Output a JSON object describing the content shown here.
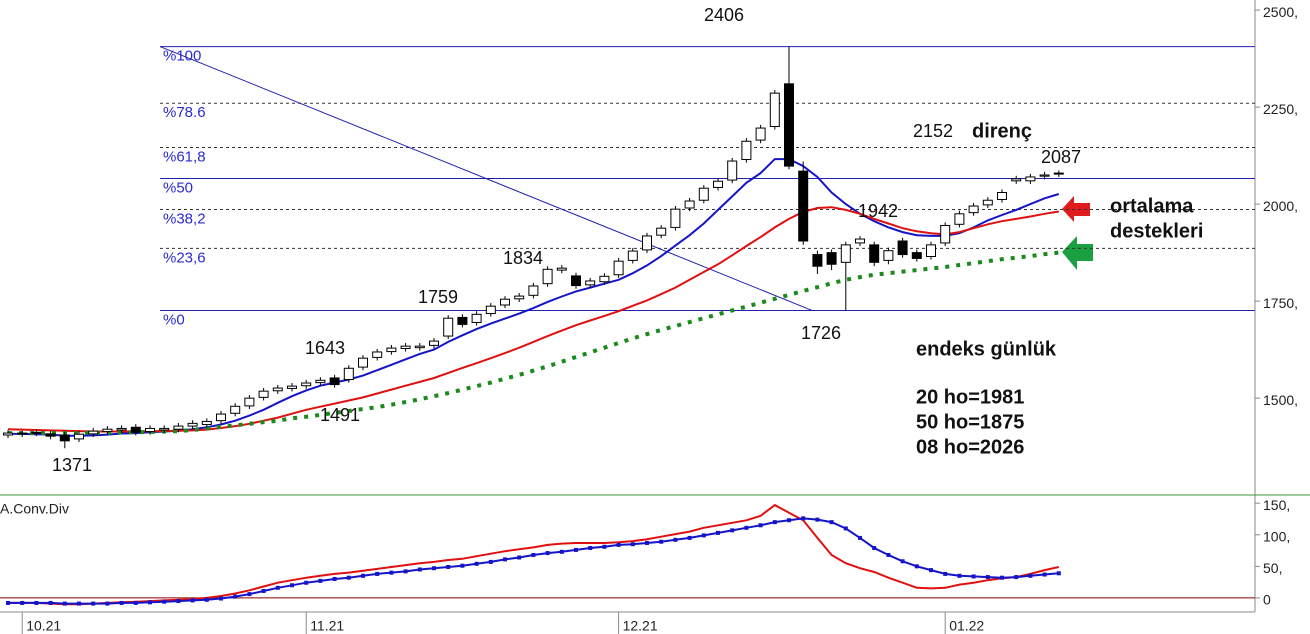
{
  "chart_data": [
    {
      "type": "candlestick",
      "open": [
        1405,
        1408,
        1412,
        1408,
        1405,
        1395,
        1408,
        1414,
        1418,
        1425,
        1414,
        1418,
        1420,
        1428,
        1432,
        1442,
        1461,
        1480,
        1502,
        1519,
        1525,
        1532,
        1540,
        1552,
        1548,
        1580,
        1605,
        1620,
        1628,
        1630,
        1636,
        1660,
        1708,
        1695,
        1718,
        1740,
        1756,
        1765,
        1795,
        1830,
        1815,
        1792,
        1800,
        1818,
        1855,
        1882,
        1920,
        1940,
        1990,
        2010,
        2043,
        2062,
        2115,
        2165,
        2200,
        2310,
        2085,
        1870,
        1875,
        1850,
        1900,
        1895,
        1855,
        1905,
        1875,
        1865,
        1900,
        1948,
        1978,
        1998,
        2012,
        2060,
        2060,
        2072,
        2078
      ],
      "high": [
        1418,
        1416,
        1420,
        1416,
        1413,
        1415,
        1423,
        1428,
        1430,
        1433,
        1430,
        1430,
        1436,
        1443,
        1448,
        1467,
        1487,
        1508,
        1526,
        1534,
        1539,
        1547,
        1554,
        1560,
        1585,
        1611,
        1627,
        1637,
        1642,
        1642,
        1655,
        1714,
        1716,
        1724,
        1745,
        1763,
        1771,
        1797,
        1840,
        1843,
        1823,
        1810,
        1822,
        1861,
        1887,
        1926,
        1946,
        1995,
        2016,
        2049,
        2067,
        2119,
        2170,
        2204,
        2294,
        2406,
        2110,
        1880,
        1883,
        1903,
        1918,
        1903,
        1888,
        1913,
        1883,
        1903,
        1953,
        1983,
        2003,
        2018,
        2038,
        2073,
        2078,
        2083,
        2087
      ],
      "low": [
        1397,
        1400,
        1402,
        1394,
        1371,
        1387,
        1400,
        1406,
        1410,
        1404,
        1406,
        1410,
        1412,
        1420,
        1424,
        1434,
        1453,
        1472,
        1494,
        1511,
        1517,
        1524,
        1532,
        1527,
        1540,
        1572,
        1597,
        1612,
        1620,
        1622,
        1628,
        1652,
        1682,
        1687,
        1710,
        1732,
        1748,
        1757,
        1787,
        1822,
        1782,
        1784,
        1792,
        1810,
        1847,
        1874,
        1912,
        1932,
        1982,
        2002,
        2035,
        2054,
        2107,
        2157,
        2192,
        2090,
        1895,
        1820,
        1830,
        1726,
        1892,
        1840,
        1845,
        1862,
        1852,
        1857,
        1892,
        1940,
        1970,
        1990,
        2004,
        2052,
        2052,
        2064,
        2070
      ],
      "close": [
        1410,
        1410,
        1410,
        1402,
        1390,
        1407,
        1415,
        1420,
        1422,
        1412,
        1422,
        1422,
        1428,
        1435,
        1440,
        1459,
        1479,
        1500,
        1518,
        1526,
        1531,
        1539,
        1546,
        1535,
        1577,
        1603,
        1619,
        1629,
        1634,
        1634,
        1647,
        1706,
        1690,
        1716,
        1737,
        1755,
        1763,
        1789,
        1832,
        1835,
        1790,
        1802,
        1814,
        1853,
        1879,
        1918,
        1938,
        1987,
        2008,
        2041,
        2059,
        2111,
        2162,
        2196,
        2286,
        2098,
        1905,
        1840,
        1845,
        1895,
        1910,
        1850,
        1880,
        1870,
        1860,
        1895,
        1945,
        1975,
        1995,
        2010,
        2030,
        2065,
        2070,
        2075,
        2080
      ],
      "up_color": "#ffffff",
      "down_color": "#000000",
      "series": [
        {
          "color": "#1414c8",
          "style": "solid",
          "values": [
            1408,
            1408,
            1407,
            1406,
            1403,
            1403,
            1404,
            1406,
            1409,
            1410,
            1412,
            1414,
            1416,
            1420,
            1425,
            1432,
            1442,
            1455,
            1470,
            1488,
            1505,
            1520,
            1532,
            1540,
            1548,
            1558,
            1572,
            1586,
            1600,
            1614,
            1625,
            1645,
            1662,
            1678,
            1692,
            1705,
            1718,
            1732,
            1748,
            1762,
            1775,
            1785,
            1795,
            1805,
            1822,
            1842,
            1866,
            1893,
            1920,
            1950,
            1985,
            2020,
            2055,
            2080,
            2116,
            2116,
            2098,
            2070,
            2030,
            2000,
            1975,
            1956,
            1940,
            1928,
            1920,
            1918,
            1918,
            1925,
            1940,
            1958,
            1972,
            1985,
            2000,
            2015,
            2026
          ]
        },
        {
          "color": "#e01010",
          "style": "solid",
          "values": [
            1420,
            1419,
            1418,
            1417,
            1416,
            1415,
            1414,
            1414,
            1414,
            1414,
            1415,
            1415,
            1416,
            1417,
            1419,
            1423,
            1428,
            1434,
            1442,
            1450,
            1460,
            1470,
            1478,
            1486,
            1494,
            1502,
            1512,
            1522,
            1532,
            1542,
            1552,
            1565,
            1578,
            1590,
            1603,
            1616,
            1630,
            1645,
            1660,
            1674,
            1688,
            1700,
            1712,
            1724,
            1738,
            1752,
            1768,
            1785,
            1805,
            1825,
            1845,
            1868,
            1892,
            1915,
            1940,
            1962,
            1980,
            1990,
            1992,
            1985,
            1975,
            1962,
            1950,
            1938,
            1930,
            1925,
            1922,
            1928,
            1938,
            1948,
            1956,
            1962,
            1968,
            1975,
            1981
          ]
        },
        {
          "color": "#1a8a1a",
          "style": "dotted",
          "values": [
            1410,
            1410,
            1410,
            1410,
            1410,
            1410,
            1411,
            1411,
            1412,
            1412,
            1413,
            1414,
            1415,
            1418,
            1422,
            1426,
            1430,
            1434,
            1438,
            1442,
            1448,
            1452,
            1457,
            1462,
            1467,
            1472,
            1477,
            1483,
            1490,
            1497,
            1505,
            1513,
            1522,
            1531,
            1540,
            1550,
            1560,
            1571,
            1582,
            1594,
            1606,
            1618,
            1630,
            1642,
            1654,
            1665,
            1676,
            1686,
            1696,
            1706,
            1716,
            1726,
            1736,
            1746,
            1756,
            1766,
            1776,
            1786,
            1796,
            1805,
            1812,
            1818,
            1822,
            1826,
            1830,
            1834,
            1838,
            1843,
            1848,
            1853,
            1858,
            1862,
            1866,
            1871,
            1875
          ]
        }
      ],
      "ylim": [
        1253,
        2526
      ],
      "yticks": [
        {
          "value": 2500,
          "label": "2500,"
        },
        {
          "value": 2250,
          "label": "2250,"
        },
        {
          "value": 2000,
          "label": "2000,"
        },
        {
          "value": 1750,
          "label": "1750,"
        },
        {
          "value": 1500,
          "label": "1500,"
        }
      ],
      "levels": [
        {
          "label": "%100",
          "value": 2406,
          "style": "solid"
        },
        {
          "label": "%78.6",
          "value": 2260,
          "style": "dashed"
        },
        {
          "label": "%61,8",
          "value": 2146,
          "style": "dashed"
        },
        {
          "label": "%50",
          "value": 2066,
          "style": "solid"
        },
        {
          "label": "%38,2",
          "value": 1986,
          "style": "dashed"
        },
        {
          "label": "%23,6",
          "value": 1886,
          "style": "dashed"
        },
        {
          "label": "%0",
          "value": 1726,
          "style": "solid"
        }
      ],
      "annotations": [
        {
          "text": "2406",
          "bold": false
        },
        {
          "text": "2152",
          "bold": false
        },
        {
          "text": "direnç",
          "bold": true
        },
        {
          "text": "2087",
          "bold": false
        },
        {
          "text": "1942",
          "bold": false
        },
        {
          "text": "1834",
          "bold": false
        },
        {
          "text": "1759",
          "bold": false
        },
        {
          "text": "1643",
          "bold": false
        },
        {
          "text": "1491",
          "bold": false
        },
        {
          "text": "1371",
          "bold": false
        },
        {
          "text": "1726",
          "bold": false
        },
        {
          "text": "ortalama",
          "bold": true
        },
        {
          "text": "destekleri",
          "bold": true
        },
        {
          "text": "endeks günlük",
          "bold": true
        },
        {
          "text": "20 ho=1981",
          "bold": true
        },
        {
          "text": "50 ho=1875",
          "bold": true
        },
        {
          "text": "08 ho=2026",
          "bold": true
        }
      ]
    },
    {
      "type": "line",
      "title": "A.Conv.Div",
      "categories": [
        null,
        "10.21",
        null,
        null,
        null,
        null,
        null,
        null,
        null,
        null,
        null,
        null,
        null,
        null,
        null,
        null,
        null,
        null,
        null,
        null,
        null,
        "11.21",
        null,
        null,
        null,
        null,
        null,
        null,
        null,
        null,
        null,
        null,
        null,
        null,
        null,
        null,
        null,
        null,
        null,
        null,
        null,
        null,
        null,
        "12.21",
        null,
        null,
        null,
        null,
        null,
        null,
        null,
        null,
        null,
        null,
        null,
        null,
        null,
        null,
        null,
        null,
        null,
        null,
        null,
        null,
        null,
        null,
        "01.22",
        null,
        null,
        null,
        null,
        null,
        null,
        null,
        null
      ],
      "series": [
        {
          "color": "#e01010",
          "markers": "none",
          "values": [
            -8,
            -8,
            -8,
            -9,
            -10,
            -10,
            -9,
            -8,
            -7,
            -6,
            -5,
            -4,
            -3,
            -2,
            0,
            3,
            7,
            12,
            18,
            24,
            28,
            32,
            35,
            38,
            40,
            43,
            46,
            49,
            52,
            55,
            57,
            60,
            62,
            66,
            70,
            74,
            77,
            80,
            84,
            86,
            87,
            87,
            87,
            88,
            90,
            93,
            97,
            101,
            105,
            111,
            115,
            119,
            123,
            130,
            147,
            135,
            123,
            95,
            68,
            55,
            47,
            41,
            32,
            24,
            16,
            15,
            16,
            21,
            24,
            28,
            31,
            33,
            38,
            44,
            49
          ]
        },
        {
          "color": "#1414c8",
          "markers": "square",
          "values": [
            -8,
            -8,
            -8,
            -8,
            -9,
            -9,
            -9,
            -9,
            -8,
            -8,
            -7,
            -6,
            -5,
            -4,
            -3,
            -1,
            2,
            6,
            11,
            16,
            20,
            24,
            27,
            30,
            32,
            35,
            38,
            40,
            42,
            45,
            47,
            49,
            51,
            54,
            57,
            61,
            64,
            68,
            71,
            73,
            76,
            79,
            81,
            84,
            85,
            87,
            89,
            92,
            95,
            99,
            103,
            107,
            111,
            115,
            120,
            123,
            126,
            124,
            120,
            110,
            95,
            79,
            68,
            58,
            50,
            44,
            38,
            35,
            34,
            33,
            32,
            33,
            35,
            37,
            39
          ]
        }
      ],
      "ylim": [
        -16,
        163
      ],
      "yticks": [
        {
          "value": 150,
          "label": "150,"
        },
        {
          "value": 100,
          "label": "100,"
        },
        {
          "value": 50,
          "label": "50,"
        },
        0
      ],
      "zero_line": true,
      "zero_color": "#8b0000"
    }
  ]
}
